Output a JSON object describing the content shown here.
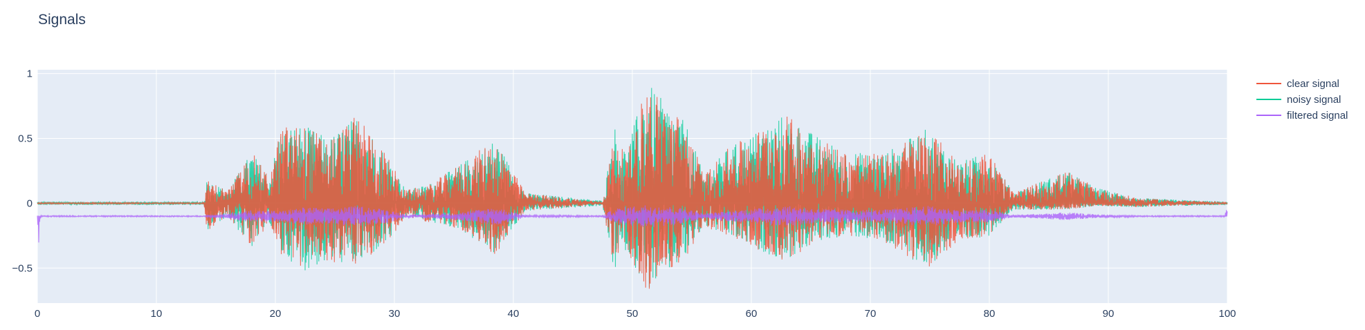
{
  "chart_data": {
    "type": "line",
    "title": "Signals",
    "xlabel": "",
    "ylabel": "",
    "xlim": [
      0,
      100
    ],
    "ylim": [
      -0.77,
      1.03
    ],
    "x_ticks": [
      0,
      10,
      20,
      30,
      40,
      50,
      60,
      70,
      80,
      90,
      100
    ],
    "y_ticks": [
      1,
      0.5,
      0,
      -0.5
    ],
    "y_tick_labels": [
      "1",
      "0.5",
      "0",
      "−0.5"
    ],
    "grid": true,
    "legend_position": "top-right",
    "background_color": "#e5ecf6",
    "series": [
      {
        "name": "clear signal",
        "color": "#ef553b",
        "baseline": 0,
        "description": "speech-like bursts, mostly hidden beneath noisy signal",
        "envelope": [
          {
            "x": 0,
            "max": 0.005,
            "min": -0.005
          },
          {
            "x": 14,
            "max": 0.005,
            "min": -0.005
          },
          {
            "x": 14.2,
            "max": 0.18,
            "min": -0.22
          },
          {
            "x": 16,
            "max": 0.1,
            "min": -0.1
          },
          {
            "x": 18,
            "max": 0.4,
            "min": -0.35
          },
          {
            "x": 19.5,
            "max": 0.2,
            "min": -0.15
          },
          {
            "x": 20.5,
            "max": 0.6,
            "min": -0.4
          },
          {
            "x": 22.5,
            "max": 0.6,
            "min": -0.52
          },
          {
            "x": 24.5,
            "max": 0.5,
            "min": -0.45
          },
          {
            "x": 27,
            "max": 0.69,
            "min": -0.48
          },
          {
            "x": 29.5,
            "max": 0.35,
            "min": -0.3
          },
          {
            "x": 31,
            "max": 0.1,
            "min": -0.1
          },
          {
            "x": 33,
            "max": 0.15,
            "min": -0.15
          },
          {
            "x": 35.5,
            "max": 0.3,
            "min": -0.2
          },
          {
            "x": 38.5,
            "max": 0.5,
            "min": -0.4
          },
          {
            "x": 41,
            "max": 0.08,
            "min": -0.06
          },
          {
            "x": 47.5,
            "max": 0.01,
            "min": -0.01
          },
          {
            "x": 48.5,
            "max": 0.55,
            "min": -0.55
          },
          {
            "x": 49.5,
            "max": 0.35,
            "min": -0.35
          },
          {
            "x": 51.2,
            "max": 0.94,
            "min": -0.68
          },
          {
            "x": 52.5,
            "max": 0.8,
            "min": -0.58
          },
          {
            "x": 54.5,
            "max": 0.62,
            "min": -0.42
          },
          {
            "x": 56,
            "max": 0.22,
            "min": -0.18
          },
          {
            "x": 58,
            "max": 0.42,
            "min": -0.25
          },
          {
            "x": 62.8,
            "max": 0.69,
            "min": -0.45
          },
          {
            "x": 65.5,
            "max": 0.52,
            "min": -0.3
          },
          {
            "x": 68,
            "max": 0.4,
            "min": -0.25
          },
          {
            "x": 71,
            "max": 0.38,
            "min": -0.3
          },
          {
            "x": 74.8,
            "max": 0.58,
            "min": -0.5
          },
          {
            "x": 77.5,
            "max": 0.32,
            "min": -0.3
          },
          {
            "x": 80,
            "max": 0.4,
            "min": -0.25
          },
          {
            "x": 82,
            "max": 0.08,
            "min": -0.05
          },
          {
            "x": 86.5,
            "max": 0.25,
            "min": -0.05
          },
          {
            "x": 89,
            "max": 0.12,
            "min": -0.02
          },
          {
            "x": 92.5,
            "max": 0.04,
            "min": -0.03
          },
          {
            "x": 100,
            "max": 0.005,
            "min": -0.005
          }
        ]
      },
      {
        "name": "noisy signal",
        "color": "#00cc96",
        "baseline": 0,
        "description": "clear signal plus noise",
        "envelope": [
          {
            "x": 0,
            "max": 0.012,
            "min": -0.012
          },
          {
            "x": 14,
            "max": 0.012,
            "min": -0.012
          },
          {
            "x": 14.2,
            "max": 0.18,
            "min": -0.22
          },
          {
            "x": 16,
            "max": 0.1,
            "min": -0.1
          },
          {
            "x": 18,
            "max": 0.4,
            "min": -0.35
          },
          {
            "x": 19.5,
            "max": 0.2,
            "min": -0.15
          },
          {
            "x": 20.5,
            "max": 0.6,
            "min": -0.4
          },
          {
            "x": 22.5,
            "max": 0.6,
            "min": -0.52
          },
          {
            "x": 24.5,
            "max": 0.5,
            "min": -0.45
          },
          {
            "x": 27,
            "max": 0.69,
            "min": -0.48
          },
          {
            "x": 29.5,
            "max": 0.35,
            "min": -0.3
          },
          {
            "x": 31,
            "max": 0.1,
            "min": -0.1
          },
          {
            "x": 33,
            "max": 0.15,
            "min": -0.15
          },
          {
            "x": 35.5,
            "max": 0.3,
            "min": -0.2
          },
          {
            "x": 38.5,
            "max": 0.5,
            "min": -0.4
          },
          {
            "x": 41,
            "max": 0.08,
            "min": -0.06
          },
          {
            "x": 47.5,
            "max": 0.02,
            "min": -0.02
          },
          {
            "x": 48.5,
            "max": 0.6,
            "min": -0.55
          },
          {
            "x": 49.5,
            "max": 0.4,
            "min": -0.35
          },
          {
            "x": 51.2,
            "max": 0.94,
            "min": -0.68
          },
          {
            "x": 52.5,
            "max": 0.8,
            "min": -0.58
          },
          {
            "x": 54.5,
            "max": 0.62,
            "min": -0.42
          },
          {
            "x": 56,
            "max": 0.22,
            "min": -0.18
          },
          {
            "x": 58,
            "max": 0.42,
            "min": -0.25
          },
          {
            "x": 62.8,
            "max": 0.69,
            "min": -0.45
          },
          {
            "x": 65.5,
            "max": 0.52,
            "min": -0.3
          },
          {
            "x": 68,
            "max": 0.4,
            "min": -0.25
          },
          {
            "x": 71,
            "max": 0.38,
            "min": -0.3
          },
          {
            "x": 74.8,
            "max": 0.58,
            "min": -0.5
          },
          {
            "x": 77.5,
            "max": 0.32,
            "min": -0.3
          },
          {
            "x": 80,
            "max": 0.4,
            "min": -0.25
          },
          {
            "x": 82,
            "max": 0.08,
            "min": -0.05
          },
          {
            "x": 86.5,
            "max": 0.25,
            "min": -0.05
          },
          {
            "x": 89,
            "max": 0.12,
            "min": -0.02
          },
          {
            "x": 92.5,
            "max": 0.04,
            "min": -0.03
          },
          {
            "x": 100,
            "max": 0.012,
            "min": -0.012
          }
        ]
      },
      {
        "name": "filtered signal",
        "color": "#ab63fa",
        "baseline": -0.1,
        "description": "low-amplitude filtered output around -0.1",
        "envelope": [
          {
            "x": 0,
            "max": -0.095,
            "min": -0.46
          },
          {
            "x": 0.3,
            "max": -0.095,
            "min": -0.105
          },
          {
            "x": 14,
            "max": -0.095,
            "min": -0.105
          },
          {
            "x": 16,
            "max": -0.08,
            "min": -0.12
          },
          {
            "x": 18,
            "max": -0.05,
            "min": -0.15
          },
          {
            "x": 20.5,
            "max": -0.06,
            "min": -0.14
          },
          {
            "x": 22.5,
            "max": -0.03,
            "min": -0.17
          },
          {
            "x": 24.5,
            "max": -0.04,
            "min": -0.16
          },
          {
            "x": 27,
            "max": -0.02,
            "min": -0.18
          },
          {
            "x": 29.5,
            "max": -0.05,
            "min": -0.15
          },
          {
            "x": 31,
            "max": -0.09,
            "min": -0.11
          },
          {
            "x": 35.5,
            "max": -0.07,
            "min": -0.13
          },
          {
            "x": 38.5,
            "max": -0.03,
            "min": -0.17
          },
          {
            "x": 41,
            "max": -0.09,
            "min": -0.11
          },
          {
            "x": 47.5,
            "max": -0.095,
            "min": -0.105
          },
          {
            "x": 48.5,
            "max": -0.04,
            "min": -0.16
          },
          {
            "x": 51.2,
            "max": -0.01,
            "min": -0.19
          },
          {
            "x": 52.5,
            "max": -0.02,
            "min": -0.18
          },
          {
            "x": 54.5,
            "max": -0.04,
            "min": -0.16
          },
          {
            "x": 56,
            "max": -0.08,
            "min": -0.12
          },
          {
            "x": 58,
            "max": -0.06,
            "min": -0.14
          },
          {
            "x": 62.8,
            "max": -0.02,
            "min": -0.18
          },
          {
            "x": 65.5,
            "max": -0.04,
            "min": -0.16
          },
          {
            "x": 68,
            "max": -0.05,
            "min": -0.15
          },
          {
            "x": 71,
            "max": -0.05,
            "min": -0.15
          },
          {
            "x": 74.8,
            "max": -0.02,
            "min": -0.18
          },
          {
            "x": 77.5,
            "max": -0.05,
            "min": -0.15
          },
          {
            "x": 80,
            "max": -0.05,
            "min": -0.15
          },
          {
            "x": 82,
            "max": -0.09,
            "min": -0.11
          },
          {
            "x": 86.5,
            "max": -0.07,
            "min": -0.13
          },
          {
            "x": 89,
            "max": -0.085,
            "min": -0.115
          },
          {
            "x": 92.5,
            "max": -0.095,
            "min": -0.105
          },
          {
            "x": 99.8,
            "max": -0.095,
            "min": -0.105
          },
          {
            "x": 100,
            "max": 0.09,
            "min": -0.105
          }
        ]
      }
    ]
  }
}
